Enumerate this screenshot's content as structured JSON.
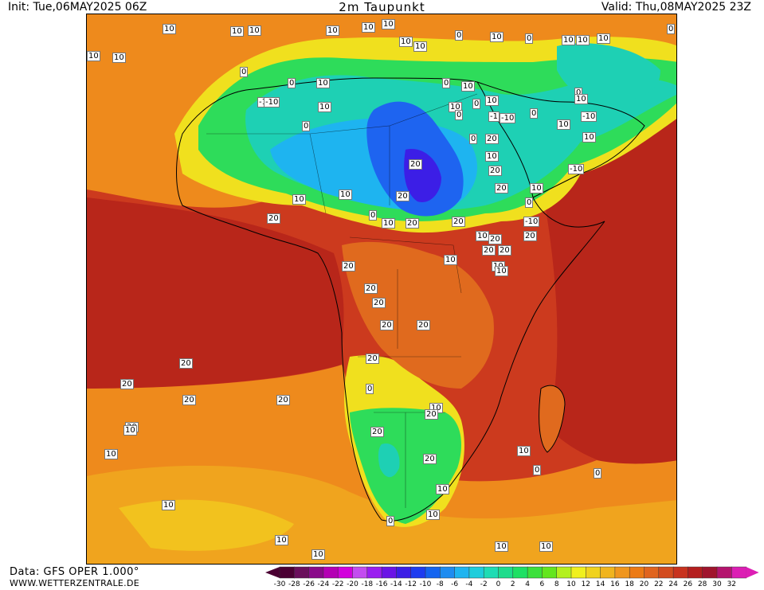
{
  "header": {
    "init": "Init: Tue,06MAY2025 06Z",
    "title": "2m Taupunkt",
    "valid": "Valid: Thu,08MAY2025 23Z"
  },
  "footer": {
    "source": "Data: GFS OPER 1.000°",
    "website": "WWW.WETTERZENTRALE.DE"
  },
  "legend": {
    "ticks": [
      "-30",
      "-28",
      "-26",
      "-24",
      "-22",
      "-20",
      "-18",
      "-16",
      "-14",
      "-12",
      "-10",
      "-8",
      "-6",
      "-4",
      "-2",
      "0",
      "2",
      "4",
      "6",
      "8",
      "10",
      "12",
      "14",
      "16",
      "18",
      "20",
      "22",
      "24",
      "26",
      "28",
      "30",
      "32"
    ],
    "colors": [
      "#4b0033",
      "#6a0f5c",
      "#8a0a8a",
      "#b400b4",
      "#d200dc",
      "#c34cf0",
      "#9a1ef0",
      "#6a14e6",
      "#3c1ee6",
      "#1e3cf0",
      "#1464f0",
      "#1e8cf0",
      "#1eb4f0",
      "#1ecddc",
      "#1edcb4",
      "#1edc8c",
      "#1ee064",
      "#3ce03c",
      "#64e61e",
      "#b4f01e",
      "#f0f01e",
      "#f0d21e",
      "#f0b41e",
      "#f0961e",
      "#ec7a14",
      "#e0641e",
      "#d24b1e",
      "#c8321e",
      "#b41e1e",
      "#a0142d",
      "#b4146e",
      "#dc1eb4"
    ]
  },
  "map_labels": [
    "10",
    "10",
    "10",
    "10",
    "10",
    "10",
    "10",
    "10",
    "0",
    "10",
    "0",
    "10",
    "10",
    "10",
    "0",
    "10",
    "10",
    "0",
    "0",
    "-10",
    "10",
    "10",
    "0",
    "-10",
    "0",
    "10",
    "10",
    "0",
    "-1",
    "-10",
    "20",
    "0",
    "10",
    "20",
    "0",
    "-10",
    "10",
    "-10",
    "20",
    "20",
    "10",
    "-10",
    "10",
    "0",
    "10",
    "0",
    "10",
    "0",
    "10",
    "10",
    "0",
    "20",
    "20",
    "20",
    "10",
    "10",
    "10",
    "10",
    "10",
    "20",
    "20",
    "20",
    "20",
    "20",
    "20",
    "20",
    "20",
    "20",
    "20",
    "20",
    "20",
    "20",
    "20",
    "20",
    "20",
    "10",
    "10",
    "0",
    "0",
    "0",
    "10",
    "20",
    "20",
    "20",
    "10",
    "0",
    "10",
    "10",
    "10",
    "10",
    "10",
    "10",
    "10"
  ]
}
